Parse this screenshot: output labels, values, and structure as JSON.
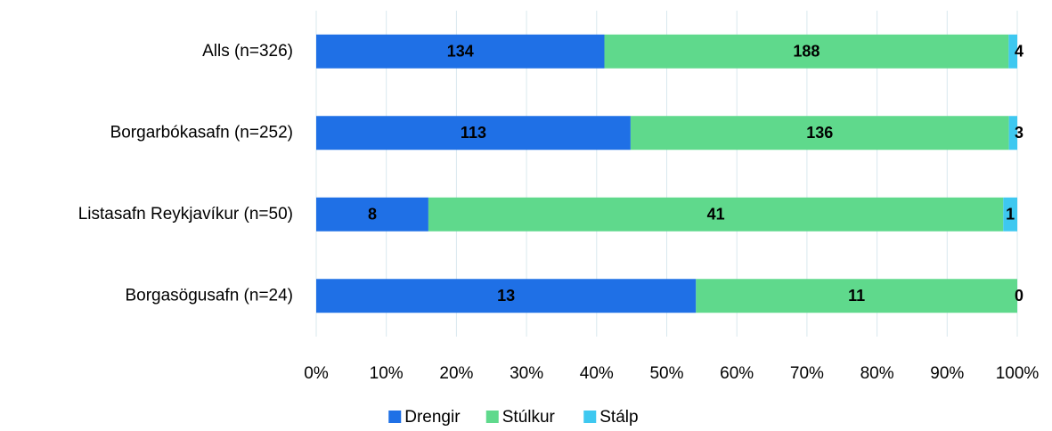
{
  "chart_data": {
    "type": "bar",
    "orientation": "horizontal",
    "stacking": "percent",
    "categories": [
      "Alls (n=326)",
      "Borgarbókasafn (n=252)",
      "Listasafn Reykjavíkur (n=50)",
      "Borgasögusafn (n=24)"
    ],
    "series": [
      {
        "name": "Drengir",
        "color": "#1f70e6",
        "label_color": "#ffffff",
        "values": [
          134,
          113,
          8,
          13
        ]
      },
      {
        "name": "Stúlkur",
        "color": "#5fd98c",
        "label_color": "#000000",
        "values": [
          188,
          136,
          41,
          11
        ]
      },
      {
        "name": "Stálp",
        "color": "#3ec8f0",
        "label_color": "#000000",
        "values": [
          4,
          3,
          1,
          0
        ]
      }
    ],
    "xlim": [
      0,
      100
    ],
    "xticks": [
      {
        "value": 0,
        "label": "0%"
      },
      {
        "value": 10,
        "label": "10%"
      },
      {
        "value": 20,
        "label": "20%"
      },
      {
        "value": 30,
        "label": "30%"
      },
      {
        "value": 40,
        "label": "40%"
      },
      {
        "value": 50,
        "label": "50%"
      },
      {
        "value": 60,
        "label": "60%"
      },
      {
        "value": 70,
        "label": "70%"
      },
      {
        "value": 80,
        "label": "80%"
      },
      {
        "value": 90,
        "label": "90%"
      },
      {
        "value": 100,
        "label": "100%"
      }
    ],
    "grid": true,
    "legend": "bottom"
  }
}
